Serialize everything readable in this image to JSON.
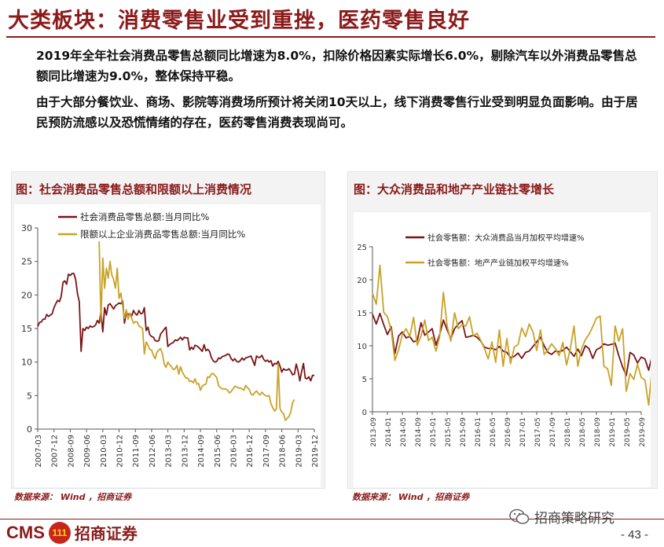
{
  "slide": {
    "title": "大类板块：消费零售业受到重挫，医药零售良好",
    "para1": "2019年全年社会消费品零售总额同比增速为8.0%，扣除价格因素实际增长6.0%，剔除汽车以外消费品零售总额同比增速为9.0%，整体保持平稳。",
    "para2": "由于大部分餐饮业、商场、影院等消费场所预计将关闭10天以上，线下消费零售行业受到明显负面影响。由于居民预防流感以及恐慌情绪的存在，医药零售消费表现尚可。",
    "left_title": "图：社会消费品零售总额和限额以上消费情况",
    "right_title": "图：大众消费品和地产产业链社零增长",
    "source_left": "数据来源： Wind ，招商证券",
    "source_right": "数据来源： Wind ，招商证券",
    "logo_text": "CMS",
    "logo_cn": "招商证券",
    "logo_mark": "111",
    "wechat_label": "招商策略研究",
    "page_number": "- 43 -"
  },
  "colors": {
    "brand": "#8b1a1a",
    "series_dark": "#7a1416",
    "series_gold": "#c9a227"
  },
  "chart_data": [
    {
      "type": "line",
      "ylim": [
        0,
        30
      ],
      "yticks": [
        0,
        5,
        10,
        15,
        20,
        25,
        30
      ],
      "xticks": [
        "2007-03",
        "2007-12",
        "2008-09",
        "2009-06",
        "2010-03",
        "2010-12",
        "2011-09",
        "2012-06",
        "2013-03",
        "2013-12",
        "2014-09",
        "2015-06",
        "2016-03",
        "2016-12",
        "2017-09",
        "2018-06",
        "2019-03",
        "2019-12"
      ],
      "legend_position": "top-left",
      "series": [
        {
          "name": "社会消费品零售总额:当月同比%",
          "color": "#7a1416",
          "start_year": 2007,
          "start_month": 3,
          "values": [
            15.3,
            15.9,
            16.0,
            16.4,
            16.4,
            17.1,
            16.8,
            17.0,
            17.2,
            18.1,
            18.7,
            19.2,
            19.0,
            19.8,
            21.9,
            22.1,
            21.6,
            23.1,
            22.9,
            23.2,
            23.2,
            22.3,
            20.2,
            19.0,
            11.6,
            15.0,
            14.7,
            15.2,
            15.0,
            15.4,
            15.2,
            15.3,
            15.5,
            16.2,
            15.8,
            17.5,
            14.5,
            18.1,
            17.0,
            18.5,
            18.7,
            18.3,
            17.9,
            18.4,
            18.6,
            18.8,
            18.7,
            19.1,
            15.8,
            17.4,
            17.1,
            17.2,
            16.9,
            17.7,
            17.2,
            17.0,
            17.7,
            17.2,
            17.3,
            18.1,
            14.7,
            15.2,
            14.1,
            13.8,
            13.7,
            13.2,
            13.1,
            13.2,
            14.2,
            14.5,
            14.9,
            15.2,
            12.3,
            12.6,
            12.8,
            12.9,
            13.3,
            13.2,
            13.4,
            13.7,
            13.3,
            13.7,
            13.6,
            13.6,
            11.8,
            12.2,
            11.9,
            12.5,
            12.4,
            12.2,
            11.9,
            11.6,
            12.6,
            11.7,
            11.9,
            11.6,
            10.7,
            10.2,
            10.0,
            10.1,
            10.6,
            10.5,
            10.8,
            10.9,
            11.0,
            11.2,
            11.1,
            10.5,
            10.2,
            10.5,
            10.1,
            10.0,
            10.2,
            10.6,
            10.3,
            10.6,
            10.7,
            10.8,
            10.9,
            10.2,
            9.5,
            10.9,
            10.7,
            10.7,
            11.0,
            10.4,
            10.1,
            10.3,
            10.0,
            10.2,
            9.4,
            9.8,
            9.7,
            10.1,
            9.4,
            8.5,
            9.0,
            8.8,
            8.8,
            9.0,
            8.6,
            8.1,
            8.2,
            9.7,
            8.7,
            7.2,
            8.6,
            9.8,
            7.6,
            7.5,
            7.8,
            7.2,
            8.0,
            8.0
          ],
          "note": "monthly 2007-03 .. 2019-12"
        },
        {
          "name": "限额以上企业消费品零售总额:当月同比%",
          "color": "#c9a227",
          "start_year": 2010,
          "start_month": 1,
          "values": [
            28.0,
            16.0,
            25.5,
            21.0,
            24.0,
            22.5,
            25.0,
            23.0,
            22.3,
            21.0,
            24.0,
            19.5,
            20.3,
            18.3,
            16.5,
            17.8,
            16.4,
            17.3,
            16.5,
            15.8,
            16.0,
            16.0,
            15.4,
            15.2,
            15.0,
            11.2,
            13.0,
            12.5,
            11.9,
            11.8,
            11.0,
            10.5,
            11.5,
            11.8,
            12.0,
            11.2,
            9.7,
            9.2,
            10.0,
            9.6,
            9.3,
            8.9,
            9.0,
            9.5,
            8.2,
            9.3,
            8.5,
            8.0,
            7.6,
            7.6,
            7.1,
            7.2,
            6.9,
            7.5,
            6.7,
            6.8,
            5.8,
            6.4,
            6.6,
            6.7,
            7.8,
            7.7,
            8.2,
            8.3,
            8.0,
            7.7,
            6.5,
            6.2,
            6.0,
            6.0,
            6.0,
            5.8,
            5.4,
            5.6,
            6.0,
            6.4,
            6.3,
            6.1,
            6.1,
            6.0,
            5.8,
            6.5,
            6.2,
            5.9,
            5.2,
            5.1,
            5.4,
            5.7,
            5.3,
            5.1,
            5.5,
            5.2,
            5.0,
            4.9,
            5.0,
            3.8,
            3.2,
            2.7,
            3.0,
            9.7,
            3.1,
            2.5,
            2.3,
            1.3,
            1.6,
            1.9,
            2.6,
            4.0,
            4.4
          ],
          "note": "monthly 2010-01 .. 2019-12 (sparse tail)"
        }
      ]
    },
    {
      "type": "line",
      "ylim": [
        0,
        25
      ],
      "yticks": [
        0,
        5,
        10,
        15,
        20,
        25
      ],
      "xticks": [
        "2013-09",
        "2014-01",
        "2014-05",
        "2014-09",
        "2015-01",
        "2015-05",
        "2015-09",
        "2016-01",
        "2016-05",
        "2016-09",
        "2017-01",
        "2017-05",
        "2017-09",
        "2018-01",
        "2018-05",
        "2018-09",
        "2019-01",
        "2019-05",
        "2019-09"
      ],
      "legend_position": "top-left",
      "series": [
        {
          "name": "社会零售额：大众消费品当月加权平均增速%",
          "color": "#7a1416",
          "start_year": 2013,
          "start_month": 9,
          "values": [
            14.8,
            13.3,
            14.9,
            13.2,
            11.7,
            12.9,
            8.8,
            11.5,
            12.1,
            11.2,
            11.4,
            10.6,
            10.8,
            13.5,
            11.6,
            12.1,
            12.6,
            10.1,
            11.7,
            13.9,
            12.4,
            11.1,
            12.6,
            13.3,
            13.8,
            11.3,
            11.4,
            11.6,
            11.3,
            10.7,
            9.8,
            9.6,
            9.6,
            9.4,
            9.9,
            9.2,
            9.0,
            8.2,
            8.4,
            8.9,
            8.1,
            9.0,
            9.2,
            9.9,
            10.6,
            11.3,
            10.0,
            9.0,
            8.7,
            9.2,
            9.1,
            9.3,
            9.8,
            9.1,
            8.4,
            9.5,
            8.5,
            10.0,
            9.6,
            8.1,
            9.4,
            9.7,
            10.3,
            10.1,
            10.2,
            10.4,
            8.5,
            6.8,
            5.5,
            9.0,
            8.6,
            7.4,
            8.3,
            8.0,
            6.3,
            8.8,
            8.0
          ]
        },
        {
          "name": "社会零售额：地产产业链加权平均增速%",
          "color": "#c9a227",
          "start_year": 2013,
          "start_month": 9,
          "values": [
            18.0,
            16.3,
            22.2,
            15.1,
            14.4,
            12.4,
            7.8,
            9.4,
            11.7,
            12.6,
            11.4,
            14.3,
            10.1,
            11.5,
            13.9,
            10.8,
            11.3,
            9.2,
            11.4,
            18.1,
            13.0,
            10.7,
            15.0,
            12.6,
            13.2,
            13.0,
            14.4,
            11.5,
            11.9,
            10.8,
            9.6,
            8.0,
            10.6,
            7.5,
            12.4,
            6.9,
            11.1,
            7.3,
            9.8,
            10.2,
            12.7,
            11.4,
            13.3,
            12.1,
            9.3,
            12.4,
            8.7,
            9.4,
            10.3,
            9.6,
            8.5,
            10.5,
            7.1,
            9.6,
            13.0,
            6.9,
            9.5,
            10.9,
            11.7,
            12.9,
            14.2,
            14.5,
            6.9,
            6.5,
            4.0,
            13.0,
            10.7,
            12.6,
            3.1,
            5.8,
            4.9,
            7.2,
            5.2,
            4.8,
            1.0,
            7.5,
            2.3
          ]
        }
      ]
    }
  ]
}
